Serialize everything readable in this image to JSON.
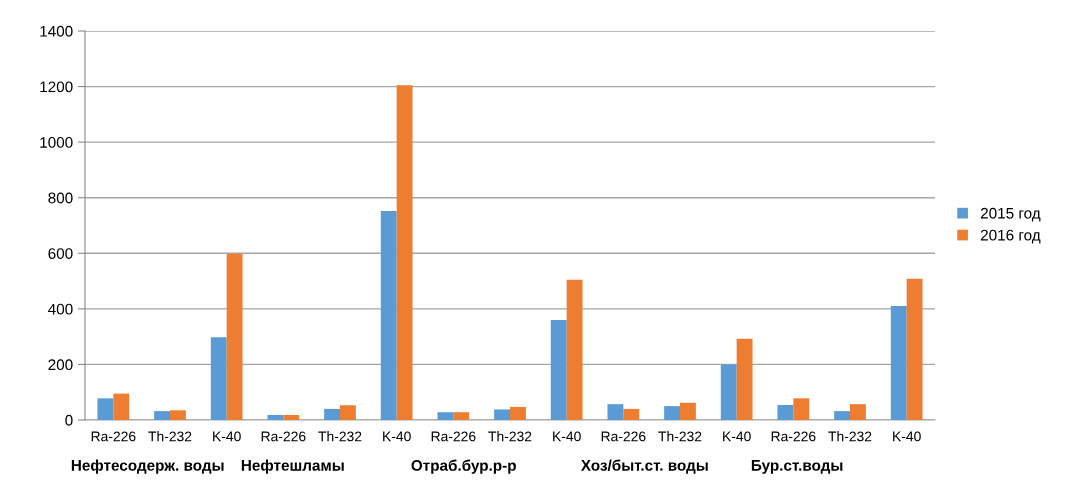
{
  "chart_data": {
    "type": "bar",
    "categories": [
      "Ra-226",
      "Th-232",
      "K-40",
      "Ra-226",
      "Th-232",
      "K-40",
      "Ra-226",
      "Th-232",
      "K-40",
      "Ra-226",
      "Th-232",
      "K-40",
      "Ra-226",
      "Th-232",
      "K-40"
    ],
    "series": [
      {
        "name": "2015 год",
        "color": "#5b9bd5",
        "values": [
          78,
          32,
          298,
          18,
          40,
          752,
          28,
          38,
          360,
          57,
          50,
          200,
          54,
          32,
          410
        ]
      },
      {
        "name": "2016 год",
        "color": "#ed7d31",
        "values": [
          95,
          35,
          598,
          18,
          53,
          1205,
          28,
          47,
          505,
          40,
          62,
          292,
          78,
          57,
          508
        ]
      }
    ],
    "annotations": [
      "Нефтесодерж. воды",
      "Нефтешламы",
      "Отраб.бур.р-р",
      "Хоз/быт.ст. воды",
      "Бур.ст.воды"
    ],
    "ylim": [
      0,
      1400
    ],
    "yticks": [
      0,
      200,
      400,
      600,
      800,
      1000,
      1200,
      1400
    ],
    "grid": "y",
    "legend": "right"
  }
}
